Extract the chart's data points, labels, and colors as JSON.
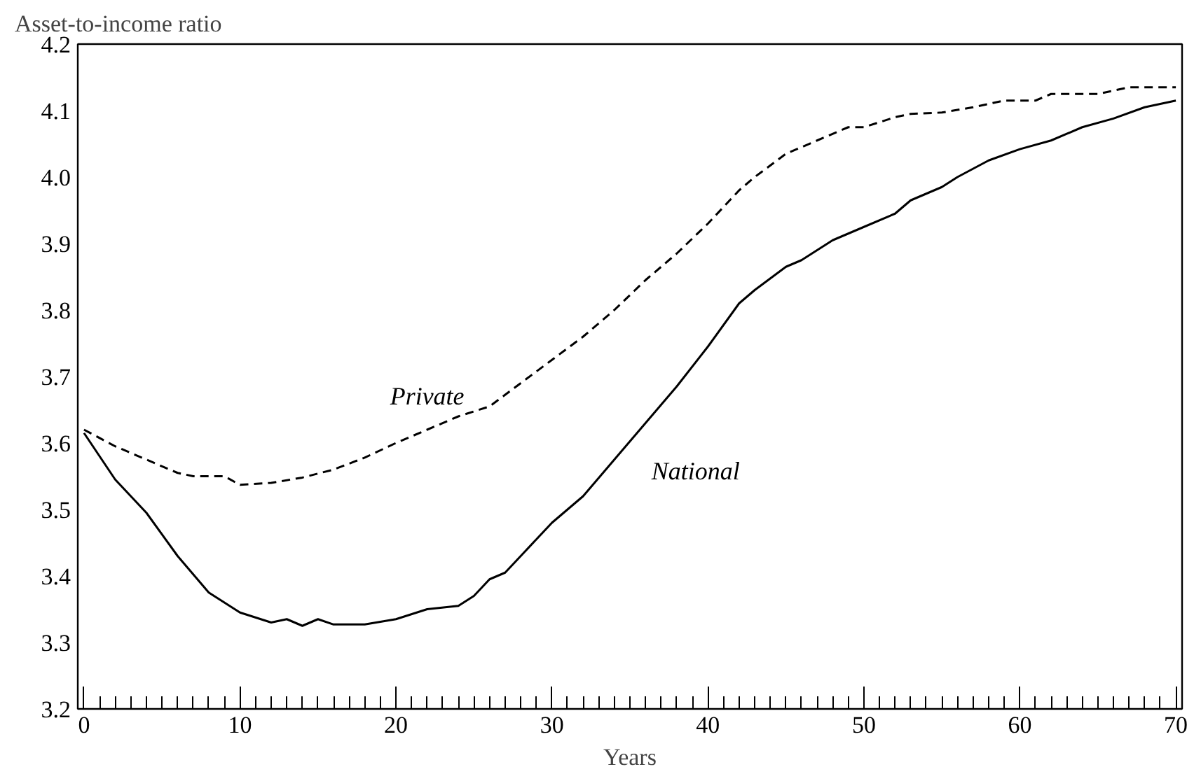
{
  "chart_data": {
    "type": "line",
    "xlabel": "Years",
    "ylabel": "Asset-to-income ratio",
    "xlim": [
      -0.4,
      70.4
    ],
    "ylim": [
      3.2,
      4.2
    ],
    "xticks": [
      0,
      {
        "value": 1,
        "label": null
      },
      {
        "value": 2,
        "label": null
      },
      {
        "value": 3,
        "label": null
      },
      {
        "value": 4,
        "label": null
      },
      {
        "value": 5,
        "label": null
      },
      {
        "value": 6,
        "label": null
      },
      {
        "value": 7,
        "label": null
      },
      {
        "value": 8,
        "label": null
      },
      {
        "value": 9,
        "label": null
      },
      10,
      {
        "value": 11,
        "label": null
      },
      {
        "value": 12,
        "label": null
      },
      {
        "value": 13,
        "label": null
      },
      {
        "value": 14,
        "label": null
      },
      {
        "value": 15,
        "label": null
      },
      {
        "value": 16,
        "label": null
      },
      {
        "value": 17,
        "label": null
      },
      {
        "value": 18,
        "label": null
      },
      {
        "value": 19,
        "label": null
      },
      20,
      {
        "value": 21,
        "label": null
      },
      {
        "value": 22,
        "label": null
      },
      {
        "value": 23,
        "label": null
      },
      {
        "value": 24,
        "label": null
      },
      {
        "value": 25,
        "label": null
      },
      {
        "value": 26,
        "label": null
      },
      {
        "value": 27,
        "label": null
      },
      {
        "value": 28,
        "label": null
      },
      {
        "value": 29,
        "label": null
      },
      30,
      {
        "value": 31,
        "label": null
      },
      {
        "value": 32,
        "label": null
      },
      {
        "value": 33,
        "label": null
      },
      {
        "value": 34,
        "label": null
      },
      {
        "value": 35,
        "label": null
      },
      {
        "value": 36,
        "label": null
      },
      {
        "value": 37,
        "label": null
      },
      {
        "value": 38,
        "label": null
      },
      {
        "value": 39,
        "label": null
      },
      40,
      {
        "value": 41,
        "label": null
      },
      {
        "value": 42,
        "label": null
      },
      {
        "value": 43,
        "label": null
      },
      {
        "value": 44,
        "label": null
      },
      {
        "value": 45,
        "label": null
      },
      {
        "value": 46,
        "label": null
      },
      {
        "value": 47,
        "label": null
      },
      {
        "value": 48,
        "label": null
      },
      {
        "value": 49,
        "label": null
      },
      50,
      {
        "value": 51,
        "label": null
      },
      {
        "value": 52,
        "label": null
      },
      {
        "value": 53,
        "label": null
      },
      {
        "value": 54,
        "label": null
      },
      {
        "value": 55,
        "label": null
      },
      {
        "value": 56,
        "label": null
      },
      {
        "value": 57,
        "label": null
      },
      {
        "value": 58,
        "label": null
      },
      {
        "value": 59,
        "label": null
      },
      60,
      {
        "value": 61,
        "label": null
      },
      {
        "value": 62,
        "label": null
      },
      {
        "value": 63,
        "label": null
      },
      {
        "value": 64,
        "label": null
      },
      {
        "value": 65,
        "label": null
      },
      {
        "value": 66,
        "label": null
      },
      {
        "value": 67,
        "label": null
      },
      {
        "value": 68,
        "label": null
      },
      {
        "value": 69,
        "label": null
      },
      70
    ],
    "yticks": [
      3.2,
      3.3,
      3.4,
      3.5,
      3.6,
      3.7,
      3.8,
      3.9,
      {
        "value": 4,
        "label": "4.0"
      },
      4.1,
      4.2
    ],
    "grid": false,
    "legend": false,
    "series": [
      {
        "name": "Private",
        "color": "#000000",
        "line_style": "dashed",
        "x": [
          0,
          2,
          4,
          6,
          7,
          9,
          10,
          12,
          14,
          16,
          18,
          20,
          22,
          24,
          26,
          28,
          30,
          32,
          34,
          36,
          38,
          40,
          42,
          43,
          45,
          47,
          49,
          50,
          52,
          53,
          55,
          57,
          59,
          61,
          62,
          65,
          67,
          70
        ],
        "values": [
          3.62,
          3.595,
          3.575,
          3.555,
          3.55,
          3.55,
          3.537,
          3.54,
          3.548,
          3.56,
          3.578,
          3.6,
          3.62,
          3.64,
          3.655,
          3.69,
          3.725,
          3.76,
          3.8,
          3.845,
          3.885,
          3.93,
          3.98,
          4.0,
          4.035,
          4.055,
          4.075,
          4.075,
          4.09,
          4.095,
          4.097,
          4.105,
          4.115,
          4.115,
          4.125,
          4.125,
          4.135,
          4.135
        ]
      },
      {
        "name": "National",
        "color": "#000000",
        "line_style": "solid",
        "x": [
          0,
          2,
          4,
          6,
          8,
          10,
          12,
          13,
          14,
          15,
          16,
          18,
          20,
          22,
          24,
          25,
          26,
          27,
          28,
          30,
          32,
          34,
          36,
          38,
          40,
          42,
          43,
          45,
          46,
          48,
          50,
          52,
          53,
          55,
          56,
          58,
          60,
          62,
          64,
          66,
          68,
          70
        ],
        "values": [
          3.615,
          3.545,
          3.495,
          3.43,
          3.375,
          3.345,
          3.33,
          3.335,
          3.325,
          3.335,
          3.327,
          3.327,
          3.335,
          3.35,
          3.355,
          3.37,
          3.395,
          3.405,
          3.43,
          3.48,
          3.52,
          3.575,
          3.63,
          3.685,
          3.745,
          3.81,
          3.83,
          3.865,
          3.875,
          3.905,
          3.925,
          3.945,
          3.965,
          3.985,
          4.0,
          4.025,
          4.042,
          4.055,
          4.075,
          4.088,
          4.105,
          4.115
        ]
      }
    ]
  }
}
